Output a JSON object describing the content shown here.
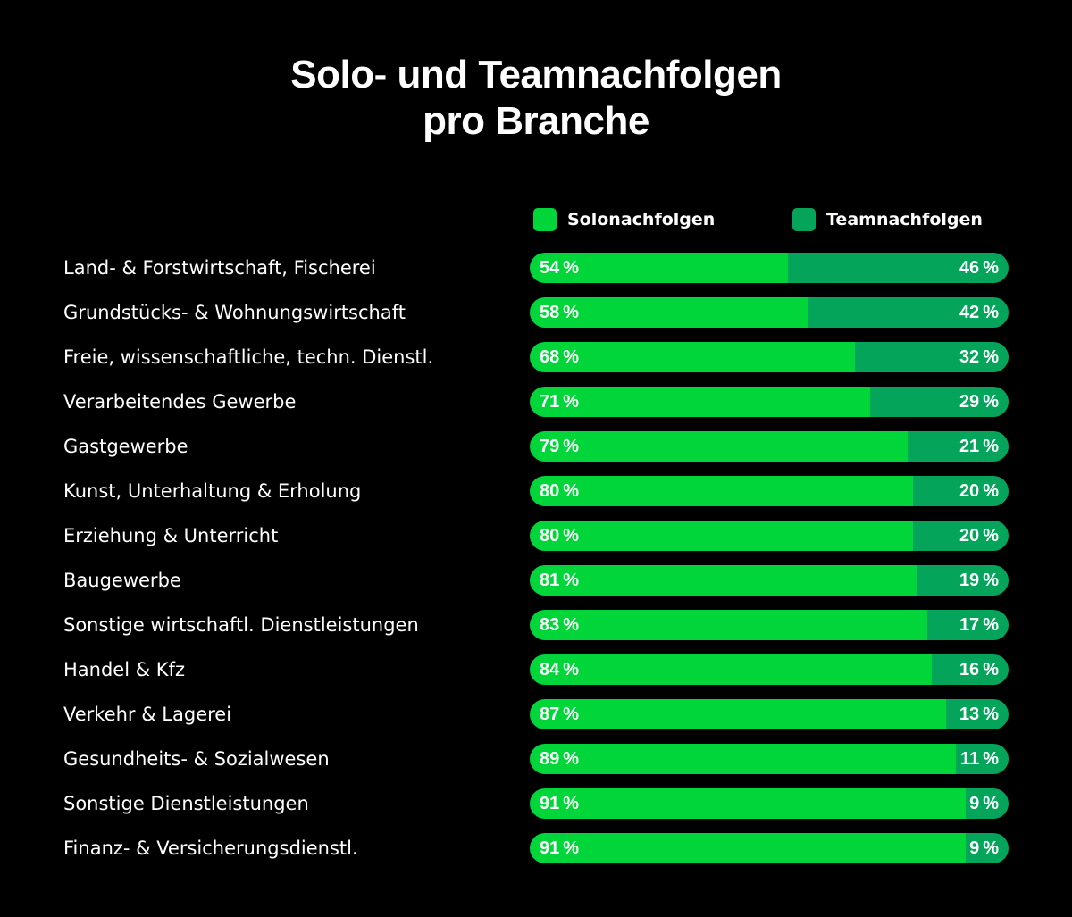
{
  "chart_data": {
    "type": "bar",
    "orientation": "horizontal",
    "stacked": true,
    "title": "Solo- und Teamnachfolgen pro Branche",
    "title_lines": [
      "Solo- und Teamnachfolgen",
      "pro Branche"
    ],
    "unit": "%",
    "legend_position": "top-right",
    "xlim": [
      0,
      100
    ],
    "categories": [
      "Land- & Forstwirtschaft, Fischerei",
      "Grundstücks- & Wohnungswirtschaft",
      "Freie, wissenschaftliche, techn. Dienstl.",
      "Verarbeitendes Gewerbe",
      "Gastgewerbe",
      "Kunst, Unterhaltung & Erholung",
      "Erziehung & Unterricht",
      "Baugewerbe",
      "Sonstige wirtschaftl. Dienstleistungen",
      "Handel & Kfz",
      "Verkehr & Lagerei",
      "Gesundheits- & Sozialwesen",
      "Sonstige Dienstleistungen",
      "Finanz- & Versicherungsdienstl."
    ],
    "series": [
      {
        "name": "Solonachfolgen",
        "color": "#00D63A",
        "values": [
          54,
          58,
          68,
          71,
          79,
          80,
          80,
          81,
          83,
          84,
          87,
          89,
          91,
          91
        ]
      },
      {
        "name": "Teamnachfolgen",
        "color": "#04A55A",
        "values": [
          46,
          42,
          32,
          29,
          21,
          20,
          20,
          19,
          17,
          16,
          13,
          11,
          9,
          9
        ]
      }
    ]
  }
}
